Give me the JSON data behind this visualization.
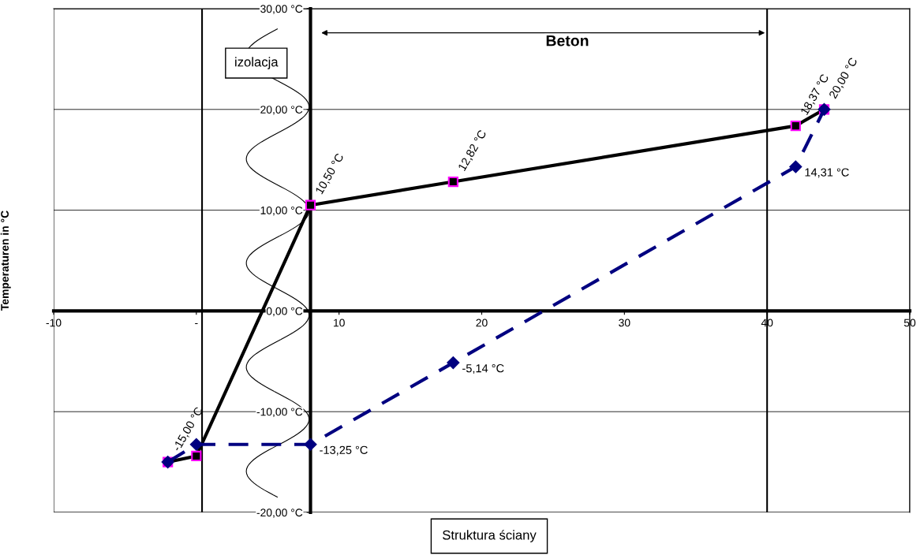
{
  "chart_data": {
    "type": "line",
    "ylabel": "Temperaturen in °C",
    "xlabel": "Struktura ściany",
    "annotations": [
      "Beton",
      "izolacja"
    ],
    "xlim": [
      -10,
      50
    ],
    "xticks": [
      -10,
      {
        "value": 0,
        "label": "-"
      },
      10,
      20,
      30,
      40,
      50
    ],
    "ylim": [
      -20,
      30
    ],
    "yticks": [
      {
        "value": -20,
        "label": "-20,00 °C"
      },
      {
        "value": -10,
        "label": "-10,00 °C"
      },
      {
        "value": 0,
        "label": "0,00 °C"
      },
      {
        "value": 10,
        "label": "10,00 °C"
      },
      {
        "value": 20,
        "label": "20,00 °C"
      },
      {
        "value": 30,
        "label": "30,00 °C"
      }
    ],
    "grid": "y",
    "ref_lines": [
      {
        "axis": "x",
        "value": 0.4,
        "color": "#000000"
      },
      {
        "axis": "x",
        "value": 40,
        "color": "#000000"
      }
    ],
    "series": [
      {
        "color": "#000000",
        "marker": "square",
        "line_style": "solid",
        "x": [
          -2,
          0,
          8,
          18,
          42,
          44
        ],
        "values": [
          -15.0,
          -14.4,
          10.5,
          12.82,
          18.37,
          20.0
        ],
        "value_labels": [
          "-15,00 °C",
          null,
          "10,50 °C",
          "12,82 °C",
          "18,37 °C",
          "20,00 °C"
        ]
      },
      {
        "color": "#000080",
        "marker": "diamond",
        "line_style": "dashed",
        "x": [
          -2,
          0,
          8,
          18,
          42,
          44
        ],
        "values": [
          -15.0,
          -13.25,
          -13.25,
          -5.14,
          14.31,
          20.0
        ],
        "value_labels": [
          null,
          null,
          "-13,25 °C",
          "-5,14 °C",
          "14,31 °C",
          null
        ]
      }
    ]
  }
}
